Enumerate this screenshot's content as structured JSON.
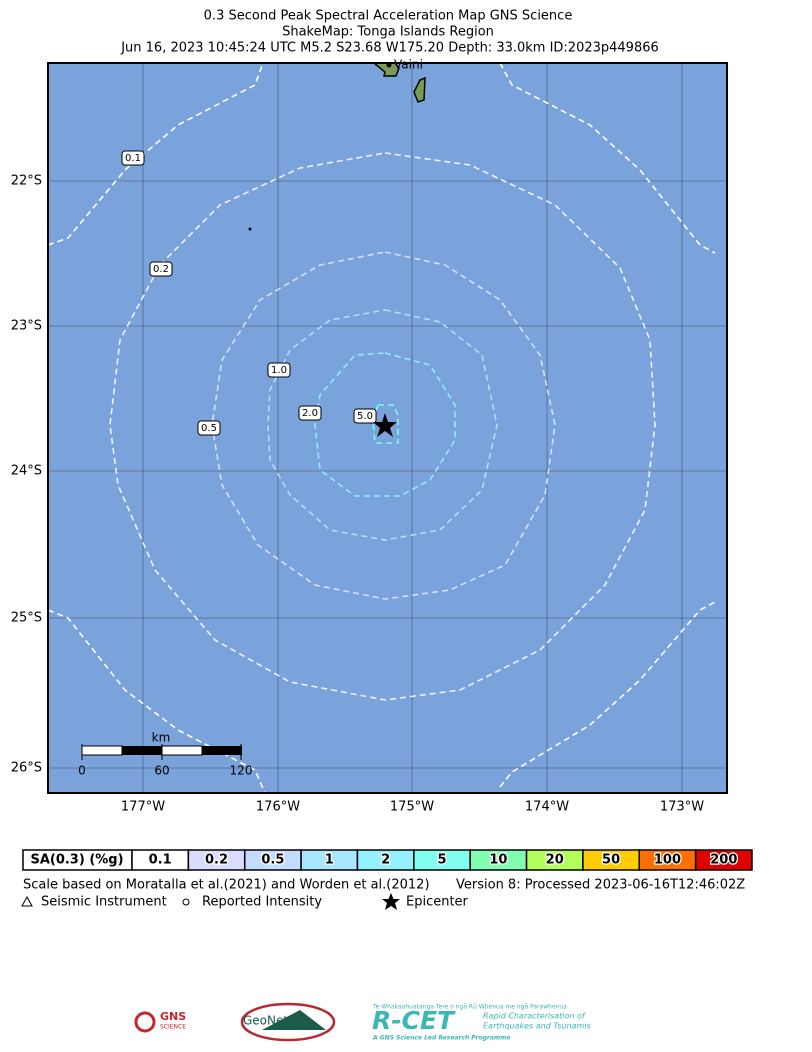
{
  "header": {
    "title_lines": [
      "0.3 Second Peak Spectral Acceleration Map GNS Science",
      "ShakeMap: Tonga Islands Region",
      "Jun 16, 2023 10:45:24 UTC M5.2 S23.68 W175.20 Depth: 33.0km ID:2023p449866"
    ]
  },
  "map": {
    "place": "Vaini",
    "lon_labels": [
      "177°W",
      "176°W",
      "175°W",
      "174°W",
      "173°W"
    ],
    "lat_labels": [
      "22°S",
      "23°S",
      "24°S",
      "25°S",
      "26°S"
    ],
    "contour_labels": [
      "0.1",
      "0.2",
      "0.5",
      "1.0",
      "2.0",
      "5.0"
    ],
    "scale_bar": {
      "unit": "km",
      "labels": [
        "0",
        "60",
        "120"
      ]
    }
  },
  "legend": {
    "title": "SA(0.3) (%g)",
    "items": [
      {
        "value": 0.1,
        "color": "#ffffff"
      },
      {
        "value": 0.2,
        "color": "#d9dcff"
      },
      {
        "value": 0.5,
        "color": "#c4dcff"
      },
      {
        "value": 1,
        "color": "#a9e6ff"
      },
      {
        "value": 2,
        "color": "#94f2ff"
      },
      {
        "value": 5,
        "color": "#80fff0"
      },
      {
        "value": 10,
        "color": "#80ffb0"
      },
      {
        "value": 20,
        "color": "#b2ff5c"
      },
      {
        "value": 50,
        "color": "#ffcc00"
      },
      {
        "value": 100,
        "color": "#ff7000"
      },
      {
        "value": 200,
        "color": "#e00000"
      }
    ]
  },
  "footer": {
    "note": "Scale based on Moratalla et al.(2021) and Worden et al.(2012)",
    "version": "Version 8: Processed 2023-06-16T12:46:02Z",
    "symbols": [
      "Seismic Instrument",
      "Reported Intensity",
      "Epicenter"
    ]
  },
  "logos": {
    "gns": "GNS",
    "gns_sub": "SCIENCE",
    "geonet": "GeoNet",
    "rcet": "R-CET",
    "rcet_top": "Te Whakaahuatanga Tere o ngā Rū Whenua me ngā Parawhenua",
    "rcet_line1": "Rapid Characterisation of",
    "rcet_line2": "Earthquakes and Tsunamis",
    "rcet_bottom": "A GNS Science Led Research Programme"
  }
}
